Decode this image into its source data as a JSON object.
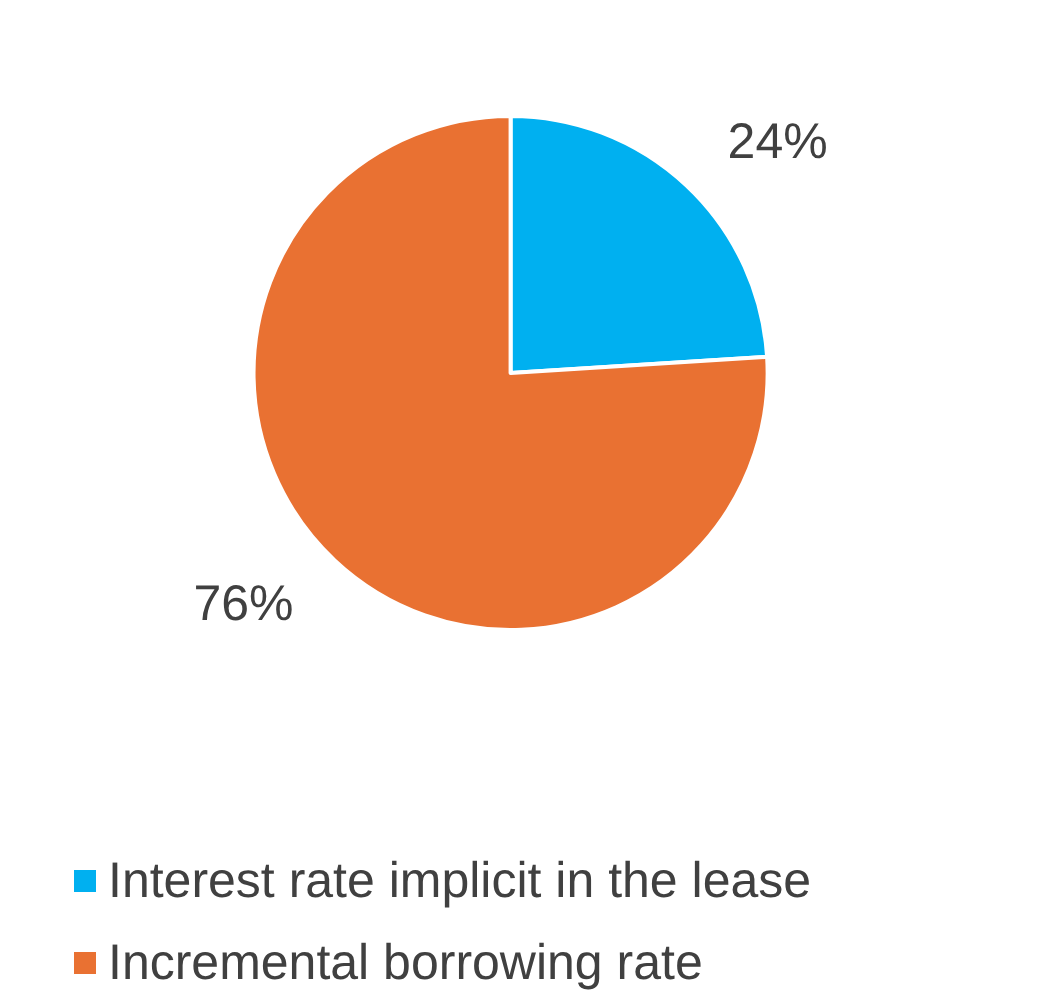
{
  "chart_data": {
    "type": "pie",
    "categories": [
      "Interest rate implicit in the lease",
      "Incremental borrowing rate"
    ],
    "values": [
      24,
      76
    ],
    "colors": [
      "#00b0f0",
      "#e97132"
    ],
    "value_labels": [
      "24%",
      "76%"
    ],
    "legend": "bottom"
  }
}
